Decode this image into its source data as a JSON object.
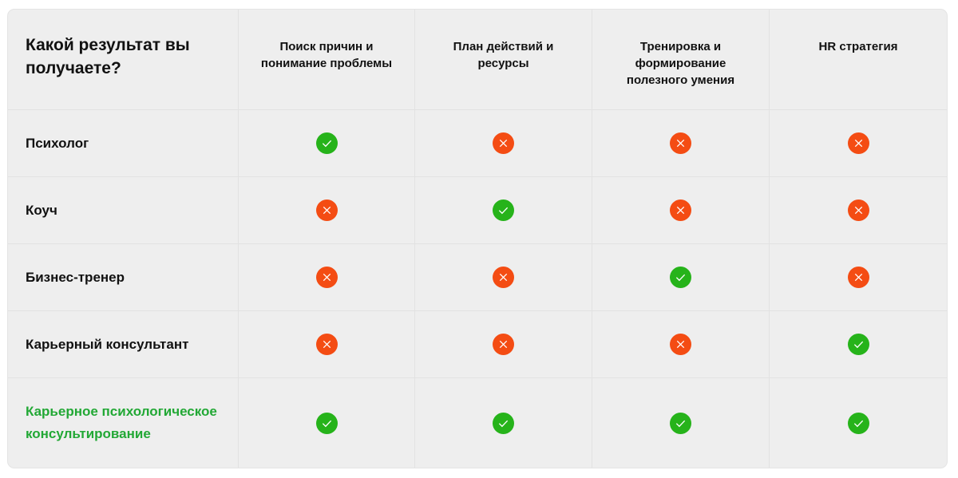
{
  "table": {
    "title": "Какой результат вы получаете?",
    "columns": [
      "Поиск причин и понимание проблемы",
      "План действий и ресурсы",
      "Тренировка и формирование полезного умения",
      "HR стратегия"
    ],
    "rows": [
      {
        "label": "Психолог",
        "values": [
          true,
          false,
          false,
          false
        ],
        "highlight": false
      },
      {
        "label": "Коуч",
        "values": [
          false,
          true,
          false,
          false
        ],
        "highlight": false
      },
      {
        "label": "Бизнес-тренер",
        "values": [
          false,
          false,
          true,
          false
        ],
        "highlight": false
      },
      {
        "label": "Карьерный консультант",
        "values": [
          false,
          false,
          false,
          true
        ],
        "highlight": false
      },
      {
        "label": "Карьерное психологическое консультирование",
        "values": [
          true,
          true,
          true,
          true
        ],
        "highlight": true
      }
    ]
  },
  "colors": {
    "yes": "#26b31a",
    "no": "#f44c13",
    "accent": "#22a835"
  }
}
